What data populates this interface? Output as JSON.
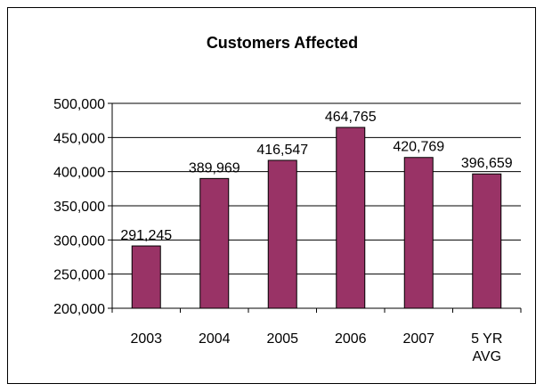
{
  "chart_data": {
    "type": "bar",
    "title": "Customers Affected",
    "xlabel": "",
    "ylabel": "",
    "categories": [
      [
        "2003"
      ],
      [
        "2004"
      ],
      [
        "2005"
      ],
      [
        "2006"
      ],
      [
        "2007"
      ],
      [
        "5 YR",
        "AVG"
      ]
    ],
    "values": [
      291245,
      389969,
      416547,
      464765,
      420769,
      396659
    ],
    "data_labels": [
      "291,245",
      "389,969",
      "416,547",
      "464,765",
      "420,769",
      "396,659"
    ],
    "ylim": [
      200000,
      500000
    ],
    "yticks": [
      200000,
      250000,
      300000,
      350000,
      400000,
      450000,
      500000
    ],
    "ytick_labels": [
      "200,000",
      "250,000",
      "300,000",
      "350,000",
      "400,000",
      "450,000",
      "500,000"
    ],
    "grid": true,
    "legend": "none",
    "bar_color": "#993366"
  }
}
